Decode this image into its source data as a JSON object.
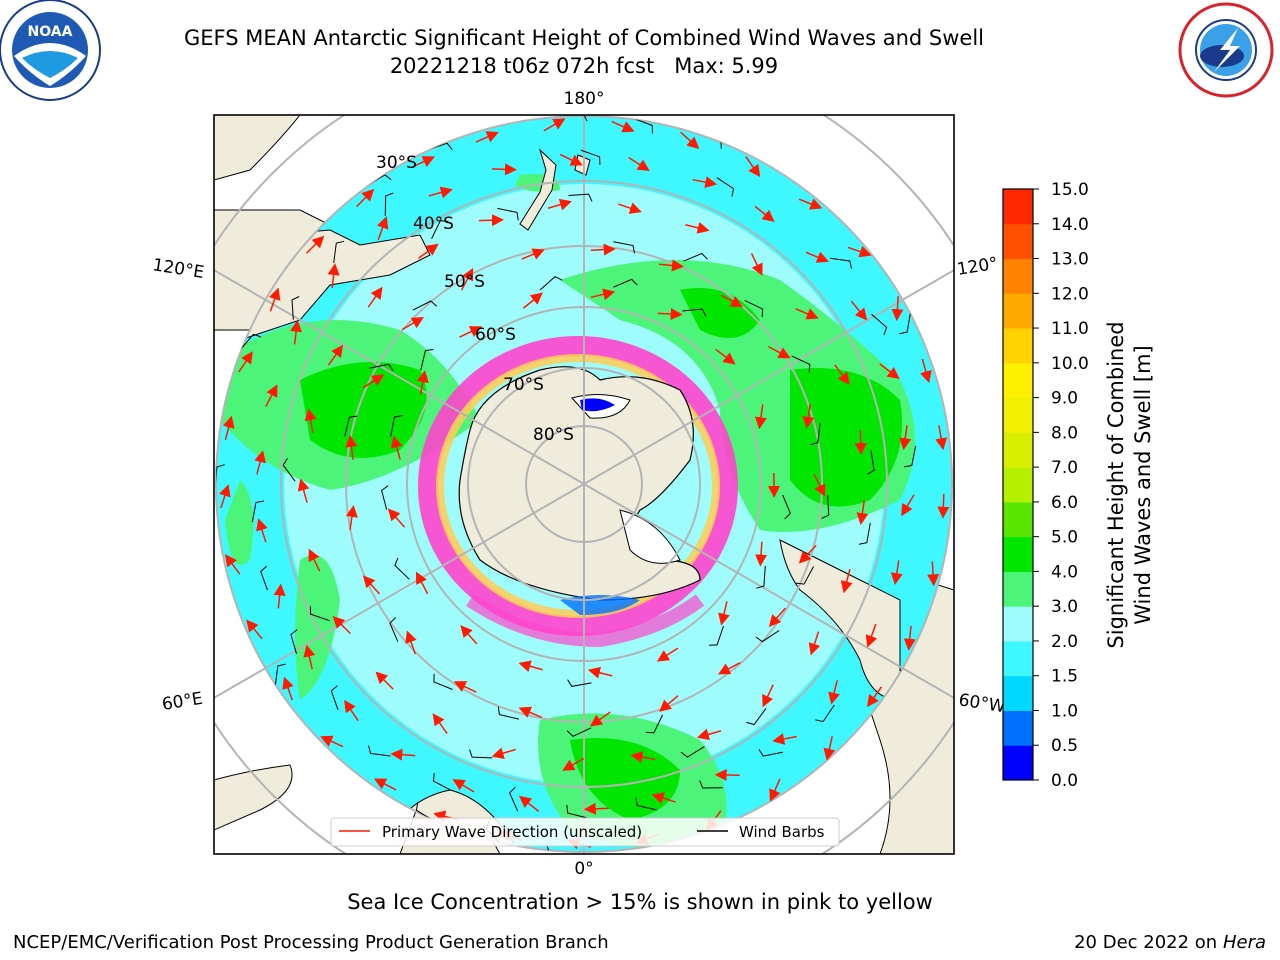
{
  "title": {
    "line1": "GEFS MEAN Antarctic Significant Height of Combined Wind Waves and Swell",
    "line2": "20221218 t06z 072h fcst   Max: 5.99"
  },
  "logos": {
    "left": "NOAA",
    "right": "NATIONAL WEATHER SERVICE"
  },
  "map": {
    "projection": "south-polar-stereographic",
    "longitude_labels": {
      "top": "180°",
      "bottom": "0°",
      "left_upper": "120°E",
      "left_lower": "60°E",
      "right_upper": "120°",
      "right_lower": "60°W"
    },
    "latitude_labels": [
      "30°S",
      "40°S",
      "50°S",
      "60°S",
      "70°S",
      "80°S"
    ],
    "colors": {
      "land": "#efecdc",
      "ocean_low": "#9ffcfc",
      "ocean_mid": "#3ff7ff",
      "waves_3": "#4cf57a",
      "waves_4": "#00e600",
      "ice": "#ff44cc",
      "wave_arrow": "#ff1a00",
      "barb": "#000000",
      "grid": "#b4b4b4"
    }
  },
  "colorbar": {
    "title_line1": "Significant Height of Combined",
    "title_line2": "Wind Waves and Swell [m]",
    "ticks": [
      "0.0",
      "0.5",
      "1.0",
      "1.5",
      "2.0",
      "3.0",
      "4.0",
      "5.0",
      "6.0",
      "7.0",
      "8.0",
      "9.0",
      "10.0",
      "11.0",
      "12.0",
      "13.0",
      "14.0",
      "15.0"
    ],
    "colors": [
      "#0000ff",
      "#0070ff",
      "#00d8ff",
      "#3ff7ff",
      "#9ffcfc",
      "#4cf57a",
      "#00e600",
      "#5ae600",
      "#b4f000",
      "#d8f000",
      "#f0f000",
      "#fff000",
      "#ffd200",
      "#ffaa00",
      "#ff8200",
      "#ff5000",
      "#ff2800"
    ]
  },
  "legend": {
    "wave_label": "Primary Wave Direction (unscaled)",
    "barb_label": "Wind Barbs"
  },
  "caption": "Sea Ice Concentration > 15% is shown in pink to yellow",
  "footer": {
    "left": "NCEP/EMC/Verification Post Processing Product Generation Branch",
    "date": "20 Dec 2022 on",
    "host": "Hera"
  }
}
